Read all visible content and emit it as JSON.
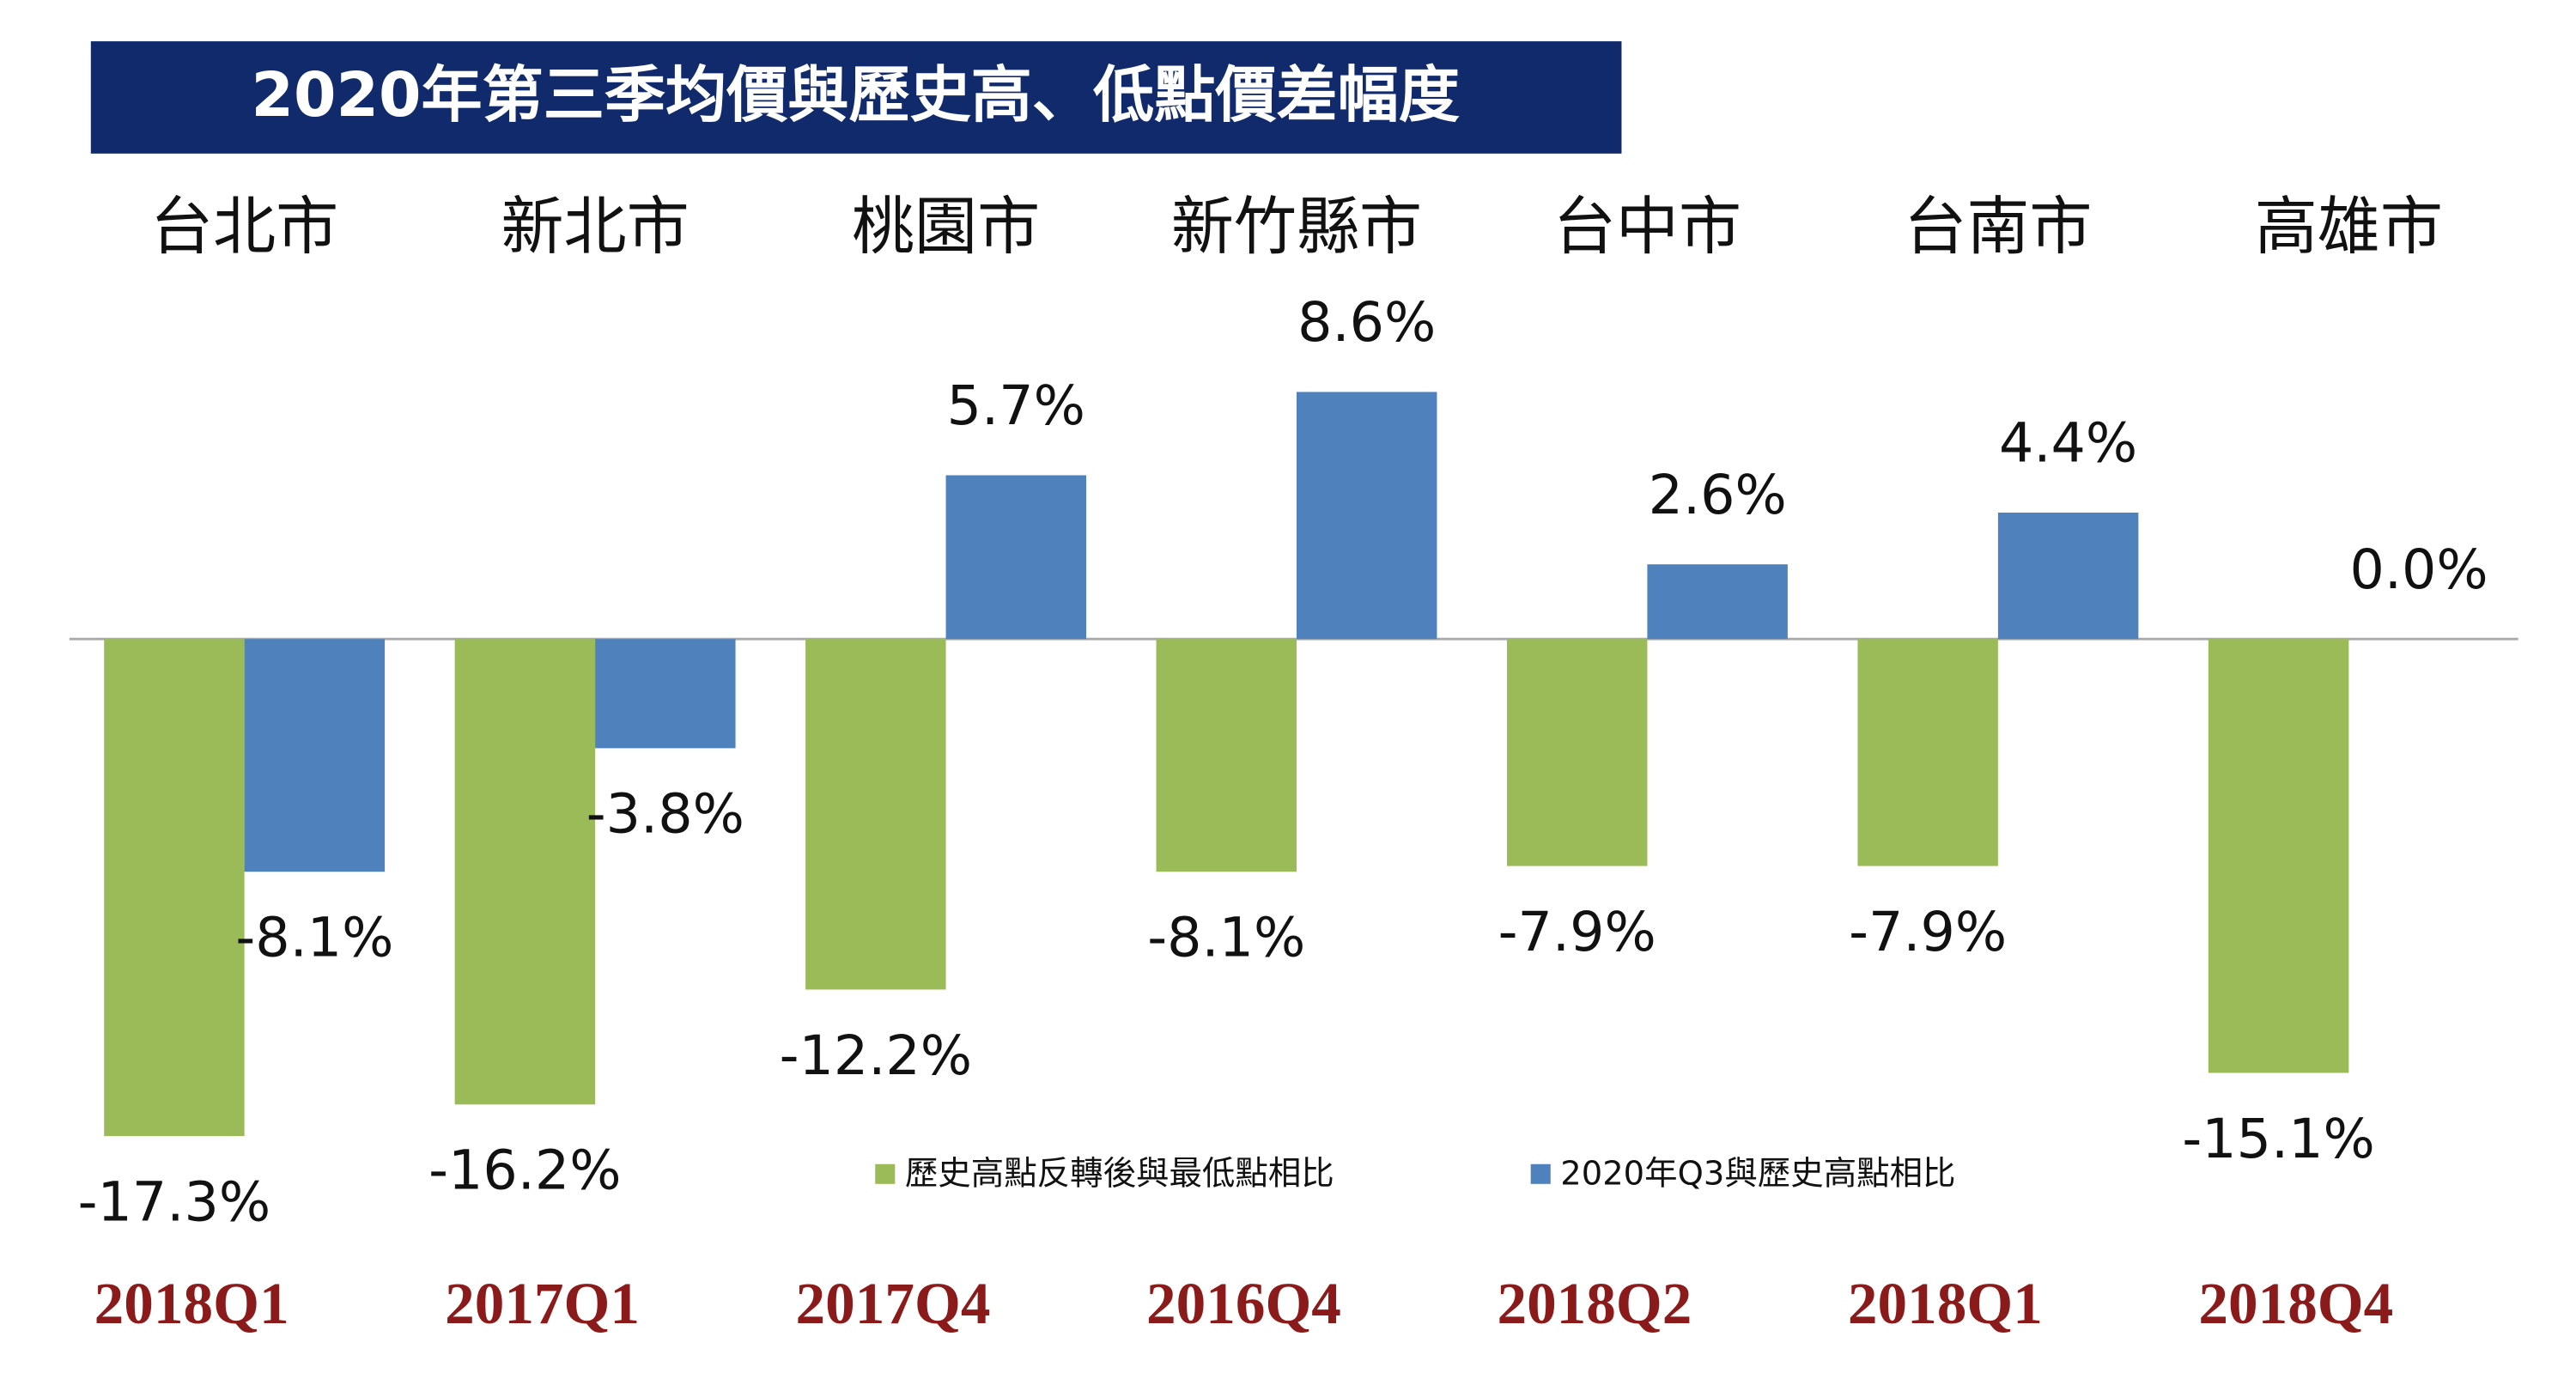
{
  "chart_data": {
    "type": "bar",
    "title": "2020年第三季均價與歷史高、低點價差幅度",
    "categories": [
      "台北市",
      "新北市",
      "桃園市",
      "新竹縣市",
      "台中市",
      "台南市",
      "高雄市"
    ],
    "series": [
      {
        "name": "歷史高點反轉後與最低點相比",
        "color": "#9bbb59",
        "values": [
          -17.3,
          -16.2,
          -12.2,
          -8.1,
          -7.9,
          -7.9,
          -15.1
        ],
        "value_labels": [
          "-17.3%",
          "-16.2%",
          "-12.2%",
          "-8.1%",
          "-7.9%",
          "-7.9%",
          "-15.1%"
        ]
      },
      {
        "name": "2020年Q3與歷史高點相比",
        "color": "#4f81bd",
        "values": [
          -8.1,
          -3.8,
          5.7,
          8.6,
          2.6,
          4.4,
          0.0
        ],
        "value_labels": [
          "-8.1%",
          "-3.8%",
          "5.7%",
          "8.6%",
          "2.6%",
          "4.4%",
          "0.0%"
        ]
      }
    ],
    "peak_quarters": [
      "2018Q1",
      "2017Q1",
      "2017Q4",
      "2016Q4",
      "2018Q2",
      "2018Q1",
      "2018Q4"
    ],
    "legend": "bottom"
  }
}
